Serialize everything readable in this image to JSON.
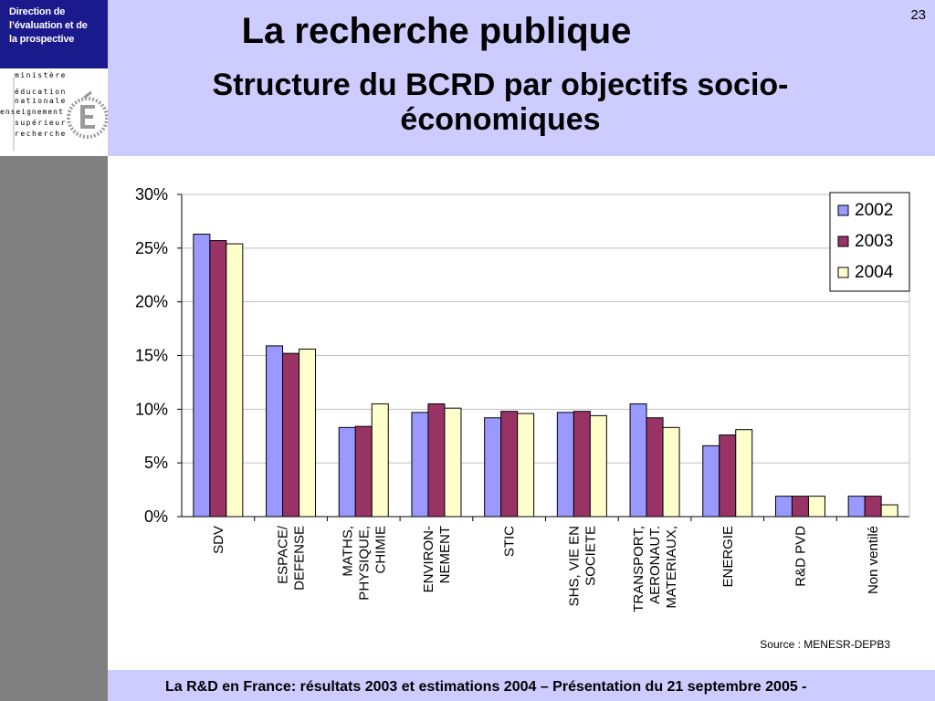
{
  "brand": {
    "lines": [
      "Direction de",
      "l’évaluation  et de",
      "la prospective"
    ]
  },
  "logo": {
    "lines": [
      "ministère",
      "éducation",
      "nationale",
      "enseignement",
      "supérieur",
      "recherche"
    ]
  },
  "header": {
    "title": "La recherche publique",
    "subtitle_lines": [
      "Structure du BCRD par objectifs socio-",
      "économiques"
    ],
    "page_number": "23"
  },
  "footer": {
    "text": "La R&D en France: résultats 2003 et estimations 2004 – Présentation du 21 septembre 2005 -"
  },
  "chart_data": {
    "type": "bar",
    "categories": [
      [
        "SDV"
      ],
      [
        "ESPACE/",
        "DEFENSE"
      ],
      [
        "MATHS,",
        "PHYSIQUE,",
        "CHIMIE"
      ],
      [
        "ENVIRON-",
        "NEMENT"
      ],
      [
        "STIC"
      ],
      [
        "SHS, VIE EN",
        "SOCIETE"
      ],
      [
        "TRANSPORT,",
        "AERONAUT.",
        "MATERIAUX,"
      ],
      [
        "ENERGIE"
      ],
      [
        "R&D PVD"
      ],
      [
        "Non ventilé"
      ]
    ],
    "series": [
      {
        "name": "2002",
        "color": "#9999ff",
        "values": [
          26.3,
          15.9,
          8.3,
          9.7,
          9.2,
          9.7,
          10.5,
          6.6,
          1.9,
          1.9
        ]
      },
      {
        "name": "2003",
        "color": "#993366",
        "values": [
          25.7,
          15.2,
          8.4,
          10.5,
          9.8,
          9.8,
          9.2,
          7.6,
          1.9,
          1.9
        ]
      },
      {
        "name": "2004",
        "color": "#ffffcc",
        "values": [
          25.4,
          15.6,
          10.5,
          10.1,
          9.6,
          9.4,
          8.3,
          8.1,
          1.9,
          1.1
        ]
      }
    ],
    "y_ticks": [
      "0%",
      "5%",
      "10%",
      "15%",
      "20%",
      "25%",
      "30%"
    ],
    "ylim": [
      0,
      30
    ],
    "y_tick_values": [
      0,
      5,
      10,
      15,
      20,
      25,
      30
    ],
    "grid": true,
    "legend_position": "top-right",
    "source": "Source : MENESR-DEPB3",
    "gridline_color": "#c0c0c0",
    "bar_outline_color": "#000000"
  }
}
